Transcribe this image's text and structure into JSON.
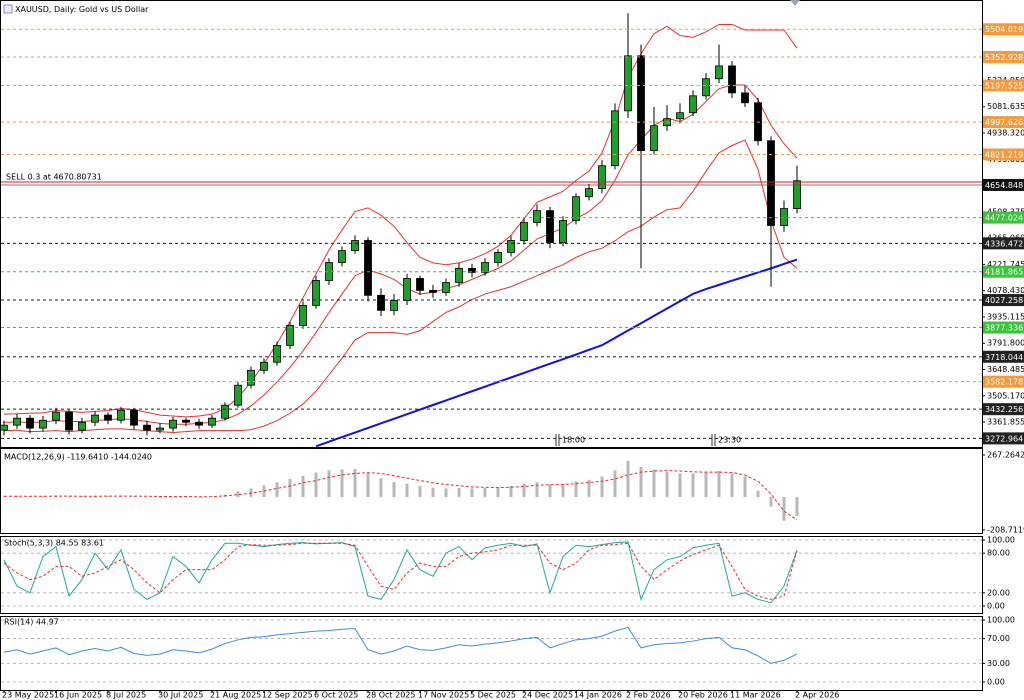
{
  "chart_data": [
    {
      "type": "candlestick",
      "title": "XAUUSD, Daily: Gold vs US Dollar",
      "categories": [
        "23 May 2025",
        null,
        null,
        null,
        "16 Jun 2025",
        null,
        null,
        null,
        "8 Jul 2025",
        null,
        null,
        null,
        "30 Jul 2025",
        null,
        null,
        null,
        "21 Aug 2025",
        null,
        null,
        null,
        "12 Sep 2025",
        null,
        null,
        null,
        "6 Oct 2025",
        null,
        null,
        null,
        "28 Oct 2025",
        null,
        null,
        null,
        "17 Nov 2025",
        null,
        null,
        null,
        "5 Dec 2025",
        null,
        null,
        null,
        "24 Dec 2025",
        null,
        null,
        null,
        "14 Jan 2026",
        null,
        null,
        null,
        "2 Feb 2026",
        null,
        null,
        null,
        "20 Feb 2026",
        null,
        null,
        null,
        "11 Mar 2026",
        null,
        null,
        null,
        null,
        "2 Apr 2026"
      ],
      "open": [
        3318,
        3345,
        3383,
        3329,
        3372,
        3416,
        3318,
        3361,
        3400,
        3372,
        3427,
        3345,
        3318,
        3329,
        3372,
        3361,
        3345,
        3383,
        3454,
        3563,
        3644,
        3688,
        3780,
        3889,
        3998,
        4134,
        4232,
        4297,
        4352,
        4053,
        3971,
        4025,
        4145,
        4080,
        4069,
        4123,
        4200,
        4178,
        4232,
        4287,
        4352,
        4450,
        4515,
        4341,
        4461,
        4591,
        4635,
        4760,
        5059,
        5359,
        4842,
        4978,
        5016,
        5049,
        5141,
        5234,
        5304,
        5157,
        5103,
        4896,
        4434,
        4526
      ],
      "high": [
        3370,
        3405,
        3400,
        3395,
        3440,
        3430,
        3385,
        3420,
        3415,
        3445,
        3440,
        3370,
        3355,
        3390,
        3385,
        3380,
        3400,
        3470,
        3580,
        3665,
        3710,
        3800,
        3910,
        4020,
        4160,
        4255,
        4320,
        4380,
        4370,
        4090,
        4060,
        4170,
        4160,
        4110,
        4145,
        4230,
        4225,
        4255,
        4305,
        4375,
        4475,
        4550,
        4535,
        4485,
        4610,
        4660,
        4790,
        5100,
        5591,
        5420,
        5080,
        5090,
        5100,
        5170,
        5265,
        5420,
        5330,
        5200,
        5130,
        4920,
        4570,
        4760
      ],
      "low": [
        3290,
        3325,
        3300,
        3310,
        3350,
        3295,
        3300,
        3340,
        3350,
        3355,
        3320,
        3290,
        3300,
        3310,
        3340,
        3325,
        3330,
        3370,
        3440,
        3545,
        3625,
        3670,
        3760,
        3870,
        3980,
        4110,
        4210,
        4280,
        4020,
        3940,
        3945,
        4000,
        4055,
        4040,
        4050,
        4100,
        4150,
        4160,
        4210,
        4265,
        4330,
        4430,
        4310,
        4320,
        4440,
        4570,
        4610,
        4740,
        5020,
        4200,
        4820,
        4950,
        4990,
        5030,
        5120,
        5210,
        5130,
        5080,
        4870,
        4100,
        4400,
        4500
      ],
      "close": [
        3345,
        3383,
        3329,
        3372,
        3416,
        3318,
        3361,
        3400,
        3372,
        3427,
        3345,
        3318,
        3329,
        3372,
        3361,
        3345,
        3383,
        3454,
        3563,
        3644,
        3688,
        3780,
        3889,
        3998,
        4134,
        4232,
        4297,
        4352,
        4053,
        3971,
        4025,
        4145,
        4080,
        4069,
        4123,
        4200,
        4178,
        4232,
        4287,
        4352,
        4450,
        4515,
        4341,
        4461,
        4591,
        4635,
        4760,
        5059,
        5359,
        4842,
        4978,
        5016,
        5049,
        5141,
        5234,
        5304,
        5157,
        5103,
        4896,
        4434,
        4526,
        4678
      ],
      "up_color": "#1f9e2c",
      "down_color": "#000000",
      "overlays": [
        {
          "color": "#e8312f",
          "values": [
            3405,
            3407,
            3410,
            3412,
            3425,
            3420,
            3415,
            3420,
            3425,
            3435,
            3430,
            3415,
            3400,
            3395,
            3390,
            3395,
            3405,
            3435,
            3495,
            3580,
            3680,
            3790,
            3910,
            4040,
            4170,
            4300,
            4410,
            4510,
            4530,
            4490,
            4430,
            4340,
            4260,
            4230,
            4220,
            4230,
            4250,
            4280,
            4320,
            4380,
            4470,
            4560,
            4590,
            4620,
            4680,
            4730,
            4830,
            5010,
            5240,
            5370,
            5480,
            5520,
            5470,
            5460,
            5490,
            5530,
            5530,
            5500,
            5500,
            5500,
            5500,
            5400
          ]
        },
        {
          "color": "#e8312f",
          "values": [
            3360,
            3362,
            3360,
            3362,
            3370,
            3365,
            3365,
            3370,
            3375,
            3380,
            3375,
            3365,
            3355,
            3350,
            3350,
            3355,
            3360,
            3375,
            3405,
            3450,
            3510,
            3580,
            3660,
            3750,
            3850,
            3960,
            4060,
            4160,
            4190,
            4170,
            4140,
            4090,
            4060,
            4070,
            4090,
            4110,
            4140,
            4170,
            4200,
            4240,
            4300,
            4360,
            4390,
            4420,
            4470,
            4510,
            4570,
            4680,
            4820,
            4900,
            4980,
            5020,
            5000,
            5040,
            5110,
            5180,
            5200,
            5200,
            5120,
            4980,
            4880,
            4800
          ]
        },
        {
          "color": "#e8312f",
          "values": [
            3315,
            3317,
            3310,
            3312,
            3315,
            3310,
            3315,
            3320,
            3325,
            3325,
            3320,
            3315,
            3310,
            3305,
            3310,
            3315,
            3315,
            3315,
            3315,
            3320,
            3340,
            3370,
            3410,
            3460,
            3530,
            3620,
            3710,
            3810,
            3850,
            3850,
            3850,
            3840,
            3860,
            3910,
            3960,
            3990,
            4030,
            4060,
            4080,
            4100,
            4130,
            4160,
            4190,
            4220,
            4260,
            4290,
            4310,
            4350,
            4400,
            4430,
            4480,
            4520,
            4530,
            4620,
            4730,
            4830,
            4870,
            4900,
            4740,
            4460,
            4260,
            4200
          ]
        },
        {
          "color": "#1010e0",
          "values": [
            null,
            null,
            null,
            null,
            null,
            null,
            null,
            null,
            null,
            null,
            null,
            null,
            null,
            null,
            null,
            null,
            null,
            null,
            null,
            null,
            null,
            null,
            null,
            null,
            3230,
            3255,
            3280,
            3305,
            3330,
            3355,
            3380,
            3405,
            3430,
            3455,
            3480,
            3505,
            3530,
            3555,
            3580,
            3605,
            3630,
            3655,
            3680,
            3705,
            3730,
            3756,
            3781,
            3821,
            3861,
            3901,
            3941,
            3981,
            4021,
            4061,
            4087,
            4110,
            4133,
            4155,
            4178,
            4200,
            4224,
            4248
          ]
        }
      ],
      "ylim": [
        3226,
        5658
      ],
      "yticks": [
        3361.855,
        {
          "value": 3505.17,
          "label": "3505.170"
        },
        3648.485,
        {
          "value": 3791.8,
          "label": "3791.800"
        },
        3935.115,
        {
          "value": 4078.43,
          "label": "4078.430"
        },
        4221.745,
        {
          "value": 4365.06,
          "label": "4365.060"
        },
        4508.375,
        4795.005,
        {
          "value": 4938.32,
          "label": "4938.320"
        },
        5081.635,
        {
          "value": 5224.95,
          "label": "5224.950"
        }
      ],
      "grid": false,
      "levels": [
        {
          "value": 5504.019,
          "color": "#f59a3c"
        },
        {
          "value": 5352.928,
          "color": "#f59a3c"
        },
        {
          "value": 5197.525,
          "color": "#f59a3c"
        },
        {
          "value": 4997.626,
          "color": "#f59a3c"
        },
        {
          "value": 4821.219,
          "color": "#f59a3c"
        },
        {
          "value": 4477.024,
          "color": "#3cc23c"
        },
        {
          "value": 4336.472,
          "color": "#222222"
        },
        {
          "value": 4181.865,
          "color": "#3cc23c"
        },
        {
          "value": 4027.258,
          "color": "#222222"
        },
        {
          "value": 3877.336,
          "color": "#3cc23c"
        },
        {
          "value": 3718.044,
          "color": "#222222"
        },
        {
          "value": 3582.178,
          "color": "#f59a3c"
        },
        {
          "value": 3432.256,
          "color": "#222222"
        },
        {
          "value": 3272.964,
          "color": "#222222"
        }
      ],
      "order": {
        "label": "SELL 0.3 at 4670.80731",
        "value": 4670.80731,
        "color": "#d62020"
      },
      "price": 4654.848,
      "session_markers": [
        "18:00",
        "23:30"
      ]
    },
    {
      "type": "bar",
      "title": "MACD(12,26,9) -119.6410 -144.0240",
      "color": "#b8b8b8",
      "values": [
        5,
        8,
        4,
        6,
        10,
        3,
        5,
        8,
        6,
        10,
        4,
        -2,
        -4,
        0,
        2,
        0,
        3,
        15,
        35,
        55,
        75,
        95,
        115,
        135,
        155,
        170,
        175,
        178,
        150,
        120,
        95,
        85,
        70,
        60,
        55,
        58,
        55,
        58,
        62,
        70,
        85,
        95,
        80,
        82,
        100,
        110,
        130,
        170,
        230,
        190,
        175,
        160,
        150,
        150,
        160,
        165,
        150,
        130,
        40,
        -60,
        -150,
        -119.641
      ],
      "signal": {
        "color": "#e8312f",
        "values": [
          5,
          5,
          5,
          5,
          6,
          6,
          5,
          5,
          6,
          6,
          6,
          5,
          4,
          3,
          3,
          2,
          2,
          8,
          15,
          25,
          38,
          55,
          70,
          90,
          105,
          125,
          140,
          150,
          155,
          150,
          135,
          120,
          105,
          90,
          80,
          72,
          65,
          62,
          60,
          62,
          68,
          75,
          78,
          80,
          85,
          92,
          100,
          115,
          140,
          158,
          165,
          168,
          165,
          160,
          158,
          158,
          156,
          140,
          100,
          20,
          -90,
          -144.024
        ]
      },
      "ylim": [
        -228,
        305
      ],
      "yticks": [
        267.2642,
        -208.7119
      ]
    },
    {
      "type": "line",
      "title": "Stoch(5,3,3) 84.55 83.61",
      "series": [
        {
          "color": "#20a8a0",
          "dashed": false,
          "values": [
            70,
            30,
            20,
            75,
            90,
            15,
            40,
            80,
            55,
            85,
            25,
            10,
            20,
            75,
            60,
            35,
            70,
            95,
            95,
            92,
            90,
            93,
            95,
            96,
            94,
            95,
            96,
            90,
            15,
            10,
            40,
            85,
            55,
            45,
            80,
            90,
            70,
            88,
            92,
            95,
            90,
            94,
            20,
            75,
            92,
            90,
            93,
            96,
            97,
            10,
            55,
            70,
            75,
            88,
            92,
            95,
            15,
            20,
            10,
            5,
            30,
            84.55
          ]
        },
        {
          "color": "#e8312f",
          "dashed": true,
          "values": [
            65,
            50,
            40,
            45,
            60,
            60,
            45,
            50,
            60,
            70,
            55,
            35,
            20,
            40,
            55,
            55,
            55,
            70,
            90,
            93,
            92,
            92,
            93,
            95,
            95,
            95,
            95,
            92,
            60,
            30,
            25,
            50,
            65,
            60,
            60,
            75,
            80,
            82,
            85,
            92,
            92,
            92,
            65,
            55,
            65,
            85,
            92,
            93,
            95,
            60,
            40,
            55,
            68,
            78,
            85,
            92,
            60,
            25,
            15,
            10,
            15,
            83.61
          ]
        }
      ],
      "ylim": [
        -10.6,
        104.5
      ],
      "yticks": [
        {
          "value": 100,
          "label": "100.00"
        },
        {
          "value": 80,
          "label": "80.00"
        },
        {
          "value": 20,
          "label": "20.00"
        },
        {
          "value": 0,
          "label": "0.00"
        }
      ],
      "grid": true
    },
    {
      "type": "line",
      "title": "RSI(14) 44.97",
      "series": [
        {
          "color": "#3a8fe0",
          "dashed": false,
          "values": [
            48,
            52,
            45,
            50,
            55,
            44,
            50,
            54,
            50,
            56,
            46,
            43,
            45,
            52,
            50,
            47,
            53,
            62,
            68,
            72,
            73,
            76,
            78,
            80,
            82,
            83,
            85,
            86,
            52,
            45,
            50,
            58,
            52,
            51,
            55,
            60,
            58,
            61,
            63,
            66,
            70,
            72,
            55,
            62,
            68,
            70,
            74,
            82,
            88,
            55,
            60,
            62,
            63,
            66,
            70,
            72,
            55,
            52,
            42,
            30,
            35,
            44.97
          ]
        }
      ],
      "ylim": [
        -12.9,
        104.8
      ],
      "yticks": [
        {
          "value": 100,
          "label": "100.00"
        },
        {
          "value": 70,
          "label": "70.00"
        },
        {
          "value": 30,
          "label": "30.00"
        },
        {
          "value": 0,
          "label": "0.00"
        }
      ],
      "grid": true
    }
  ]
}
